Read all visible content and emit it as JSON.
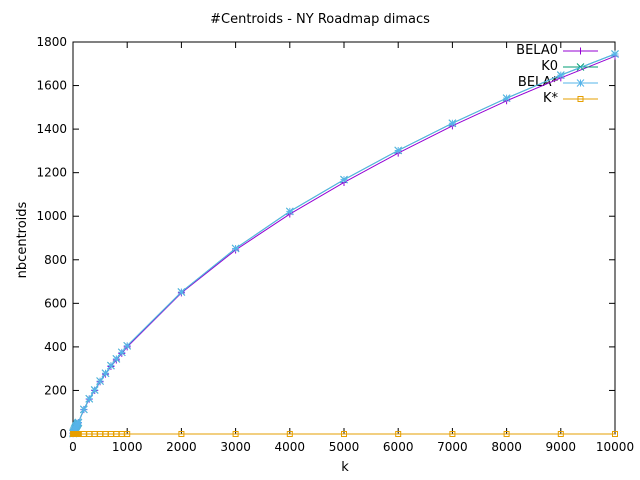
{
  "chart_data": {
    "type": "line",
    "title": "#Centroids - NY Roadmap dimacs",
    "xlabel": "k",
    "ylabel": "nbcentroids",
    "xlim": [
      0,
      10000
    ],
    "ylim": [
      0,
      1800
    ],
    "xticks": [
      0,
      1000,
      2000,
      3000,
      4000,
      5000,
      6000,
      7000,
      8000,
      9000,
      10000
    ],
    "yticks": [
      0,
      200,
      400,
      600,
      800,
      1000,
      1200,
      1400,
      1600,
      1800
    ],
    "legend_position": "top-right",
    "grid": false,
    "series": [
      {
        "name": "BELA0",
        "color": "#9400d3",
        "marker": "plus",
        "x": [
          2,
          5,
          10,
          20,
          30,
          40,
          50,
          60,
          70,
          80,
          90,
          100,
          200,
          300,
          400,
          500,
          600,
          700,
          800,
          900,
          1000,
          2000,
          3000,
          4000,
          5000,
          6000,
          7000,
          8000,
          9000,
          10000
        ],
        "y": [
          2,
          5,
          9,
          16,
          22,
          27,
          32,
          36,
          40,
          45,
          49,
          53,
          112,
          160,
          200,
          240,
          275,
          310,
          340,
          370,
          400,
          648,
          845,
          1010,
          1155,
          1290,
          1415,
          1530,
          1635,
          1735
        ]
      },
      {
        "name": "K0",
        "color": "#009e73",
        "marker": "x",
        "x": [
          2,
          5,
          10,
          20,
          30,
          40,
          50,
          60,
          70,
          80,
          90,
          100,
          200,
          300,
          400,
          500,
          600,
          700,
          800,
          900,
          1000,
          2000,
          3000,
          4000,
          5000,
          6000,
          7000,
          8000,
          9000,
          10000
        ],
        "y": [
          2,
          5,
          9,
          16,
          22,
          27,
          32,
          36,
          40,
          45,
          49,
          53,
          113,
          162,
          202,
          243,
          279,
          314,
          345,
          375,
          405,
          652,
          852,
          1022,
          1168,
          1302,
          1427,
          1542,
          1648,
          1745
        ]
      },
      {
        "name": "BELA*",
        "color": "#56b4e9",
        "marker": "star",
        "x": [
          2,
          5,
          10,
          20,
          30,
          40,
          50,
          60,
          70,
          80,
          90,
          100,
          200,
          300,
          400,
          500,
          600,
          700,
          800,
          900,
          1000,
          2000,
          3000,
          4000,
          5000,
          6000,
          7000,
          8000,
          9000,
          10000
        ],
        "y": [
          2,
          5,
          9,
          16,
          22,
          27,
          32,
          36,
          40,
          45,
          49,
          53,
          113,
          162,
          202,
          243,
          279,
          314,
          345,
          375,
          405,
          652,
          852,
          1022,
          1168,
          1302,
          1427,
          1542,
          1648,
          1745
        ]
      },
      {
        "name": "K*",
        "color": "#e69f00",
        "marker": "square",
        "x": [
          2,
          5,
          10,
          20,
          30,
          40,
          50,
          60,
          70,
          80,
          90,
          100,
          200,
          300,
          400,
          500,
          600,
          700,
          800,
          900,
          1000,
          2000,
          3000,
          4000,
          5000,
          6000,
          7000,
          8000,
          9000,
          10000
        ],
        "y": [
          0,
          0,
          0,
          0,
          0,
          0,
          0,
          0,
          0,
          0,
          0,
          0,
          0,
          0,
          0,
          0,
          0,
          0,
          0,
          0,
          0,
          0,
          0,
          0,
          0,
          0,
          0,
          0,
          0,
          0
        ]
      }
    ]
  }
}
